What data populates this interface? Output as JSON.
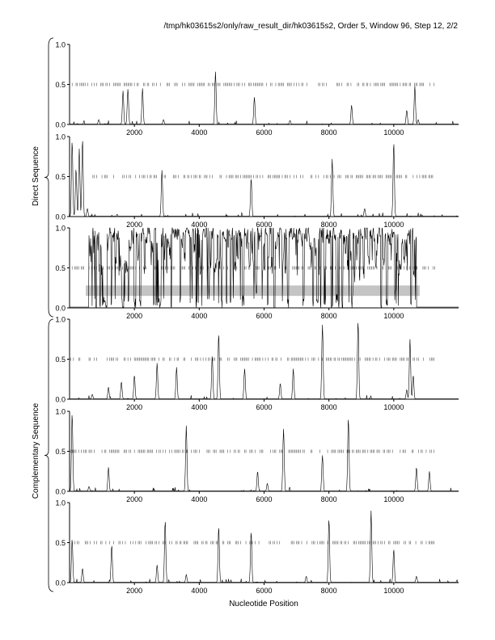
{
  "header": {
    "title": "/tmp/hk03615s2/only/raw_result_dir/hk03615s2, Order 5, Window 96, Step 12, 2/2"
  },
  "group_labels": {
    "direct": "Direct Sequence",
    "complementary": "Complementary Sequence"
  },
  "xlabel": "Nucleotide Position",
  "chart_data": {
    "type": "line",
    "xlabel": "Nucleotide Position",
    "xlim": [
      0,
      12000
    ],
    "ylim": [
      0,
      1.0
    ],
    "xticks": [
      2000,
      4000,
      6000,
      8000,
      10000
    ],
    "yticks": [
      0.0,
      0.5,
      1.0
    ],
    "ytick_labels": [
      "0.0",
      "0.5",
      "1.0"
    ],
    "grid": false,
    "panels": [
      {
        "group": "direct",
        "frame": 1,
        "peaks": [
          [
            900,
            0.06
          ],
          [
            1650,
            0.42
          ],
          [
            1800,
            0.44
          ],
          [
            2250,
            0.45
          ],
          [
            2900,
            0.06
          ],
          [
            4500,
            0.66
          ],
          [
            5700,
            0.34
          ],
          [
            6800,
            0.05
          ],
          [
            8700,
            0.24
          ],
          [
            10400,
            0.18
          ],
          [
            10650,
            0.48
          ],
          [
            10750,
            0.06
          ]
        ],
        "mark_ranges": [
          [
            0,
            11300
          ]
        ]
      },
      {
        "group": "direct",
        "frame": 2,
        "peaks": [
          [
            80,
            0.95
          ],
          [
            200,
            0.6
          ],
          [
            300,
            0.85
          ],
          [
            400,
            0.97
          ],
          [
            550,
            0.1
          ],
          [
            2850,
            0.58
          ],
          [
            5600,
            0.48
          ],
          [
            8100,
            0.72
          ],
          [
            9100,
            0.1
          ],
          [
            10000,
            0.93
          ]
        ],
        "mark_ranges": [
          [
            600,
            11200
          ]
        ]
      },
      {
        "group": "direct",
        "frame": 3,
        "dense": true,
        "dense_range": [
          600,
          10700
        ],
        "band": {
          "x": [
            500,
            10800
          ],
          "y": [
            0.15,
            0.28
          ],
          "color": "#c4c4c4"
        },
        "mark_ranges": [
          [
            0,
            500
          ],
          [
            600,
            10800
          ],
          [
            10900,
            11300
          ]
        ]
      },
      {
        "group": "complementary",
        "frame": 1,
        "peaks": [
          [
            700,
            0.06
          ],
          [
            1200,
            0.15
          ],
          [
            1600,
            0.22
          ],
          [
            2000,
            0.3
          ],
          [
            2700,
            0.45
          ],
          [
            3300,
            0.4
          ],
          [
            4400,
            0.55
          ],
          [
            4600,
            0.82
          ],
          [
            5400,
            0.38
          ],
          [
            6500,
            0.2
          ],
          [
            6900,
            0.38
          ],
          [
            7800,
            0.93
          ],
          [
            8900,
            0.98
          ],
          [
            10400,
            0.12
          ],
          [
            10500,
            0.75
          ],
          [
            10600,
            0.3
          ]
        ],
        "mark_ranges": [
          [
            0,
            11300
          ]
        ]
      },
      {
        "group": "complementary",
        "frame": 2,
        "peaks": [
          [
            80,
            0.98
          ],
          [
            600,
            0.06
          ],
          [
            1200,
            0.3
          ],
          [
            3600,
            0.82
          ],
          [
            5800,
            0.25
          ],
          [
            6100,
            0.1
          ],
          [
            6600,
            0.78
          ],
          [
            7800,
            0.45
          ],
          [
            8600,
            0.92
          ],
          [
            10700,
            0.3
          ],
          [
            11100,
            0.25
          ]
        ],
        "mark_ranges": [
          [
            0,
            11300
          ]
        ]
      },
      {
        "group": "complementary",
        "frame": 3,
        "peaks": [
          [
            80,
            0.55
          ],
          [
            400,
            0.18
          ],
          [
            1300,
            0.47
          ],
          [
            2700,
            0.22
          ],
          [
            2950,
            0.78
          ],
          [
            3600,
            0.1
          ],
          [
            4600,
            0.7
          ],
          [
            5600,
            0.64
          ],
          [
            7300,
            0.08
          ],
          [
            8000,
            0.8
          ],
          [
            9300,
            0.9
          ],
          [
            10000,
            0.42
          ],
          [
            10700,
            0.08
          ]
        ],
        "mark_ranges": [
          [
            0,
            11300
          ]
        ]
      }
    ]
  }
}
